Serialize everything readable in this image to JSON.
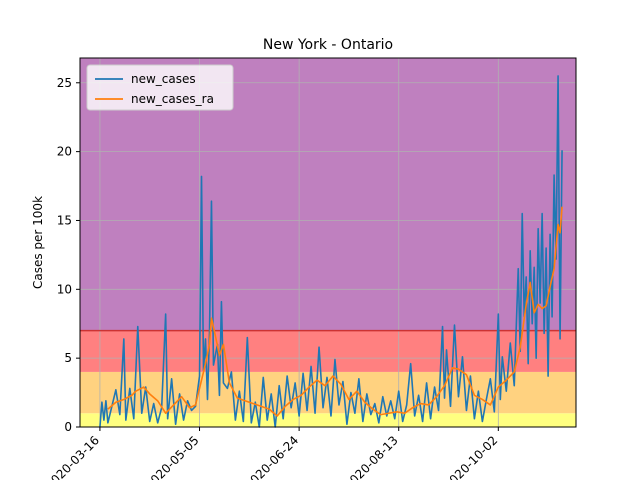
{
  "chart_data": {
    "type": "line",
    "title": "New York - Ontario",
    "xlabel": "",
    "ylabel": "Cases per 100k",
    "x_ticks": [
      "2020-03-16",
      "2020-05-05",
      "2020-06-24",
      "2020-08-13",
      "2020-10-02"
    ],
    "x_range": [
      "2020-03-06",
      "2020-11-10"
    ],
    "ylim": [
      0,
      26.8
    ],
    "y_ticks": [
      0,
      5,
      10,
      15,
      20,
      25
    ],
    "grid": true,
    "legend_position": "top-left",
    "bands": [
      {
        "from": 0,
        "to": 1,
        "color": "#ffff80"
      },
      {
        "from": 1,
        "to": 4,
        "color": "#ffd280"
      },
      {
        "from": 4,
        "to": 7,
        "color": "#ff8080"
      },
      {
        "from": 7,
        "to": 26.8,
        "color": "#bf80bf"
      }
    ],
    "threshold_line": {
      "y": 7,
      "color": "#cc3333"
    },
    "series": [
      {
        "name": "new_cases",
        "color": "#1f77b4",
        "points": [
          [
            "2020-03-16",
            0.0
          ],
          [
            "2020-03-17",
            1.8
          ],
          [
            "2020-03-18",
            0.5
          ],
          [
            "2020-03-19",
            1.9
          ],
          [
            "2020-03-20",
            0.3
          ],
          [
            "2020-03-22",
            1.5
          ],
          [
            "2020-03-24",
            2.7
          ],
          [
            "2020-03-26",
            0.9
          ],
          [
            "2020-03-28",
            6.4
          ],
          [
            "2020-03-29",
            0.5
          ],
          [
            "2020-03-31",
            2.8
          ],
          [
            "2020-04-02",
            0.6
          ],
          [
            "2020-04-04",
            7.3
          ],
          [
            "2020-04-06",
            1.0
          ],
          [
            "2020-04-08",
            2.9
          ],
          [
            "2020-04-10",
            0.4
          ],
          [
            "2020-04-12",
            1.7
          ],
          [
            "2020-04-14",
            0.3
          ],
          [
            "2020-04-16",
            1.4
          ],
          [
            "2020-04-18",
            8.2
          ],
          [
            "2020-04-19",
            0.6
          ],
          [
            "2020-04-21",
            3.5
          ],
          [
            "2020-04-23",
            0.2
          ],
          [
            "2020-04-25",
            2.4
          ],
          [
            "2020-04-27",
            0.5
          ],
          [
            "2020-04-29",
            1.9
          ],
          [
            "2020-05-01",
            1.2
          ],
          [
            "2020-05-03",
            1.5
          ],
          [
            "2020-05-05",
            3.7
          ],
          [
            "2020-05-06",
            18.2
          ],
          [
            "2020-05-07",
            4.1
          ],
          [
            "2020-05-08",
            6.4
          ],
          [
            "2020-05-09",
            2.0
          ],
          [
            "2020-05-10",
            6.8
          ],
          [
            "2020-05-11",
            16.4
          ],
          [
            "2020-05-12",
            4.5
          ],
          [
            "2020-05-14",
            6.0
          ],
          [
            "2020-05-15",
            2.3
          ],
          [
            "2020-05-16",
            9.1
          ],
          [
            "2020-05-17",
            3.2
          ],
          [
            "2020-05-19",
            2.8
          ],
          [
            "2020-05-21",
            4.0
          ],
          [
            "2020-05-23",
            0.5
          ],
          [
            "2020-05-25",
            2.6
          ],
          [
            "2020-05-27",
            0.4
          ],
          [
            "2020-05-29",
            6.5
          ],
          [
            "2020-05-31",
            0.3
          ],
          [
            "2020-06-02",
            1.8
          ],
          [
            "2020-06-04",
            0.0
          ],
          [
            "2020-06-06",
            3.6
          ],
          [
            "2020-06-08",
            0.5
          ],
          [
            "2020-06-10",
            2.4
          ],
          [
            "2020-06-12",
            0.0
          ],
          [
            "2020-06-14",
            3.0
          ],
          [
            "2020-06-16",
            0.6
          ],
          [
            "2020-06-18",
            3.7
          ],
          [
            "2020-06-20",
            1.4
          ],
          [
            "2020-06-22",
            3.2
          ],
          [
            "2020-06-24",
            0.8
          ],
          [
            "2020-06-26",
            3.9
          ],
          [
            "2020-06-28",
            1.2
          ],
          [
            "2020-06-30",
            4.4
          ],
          [
            "2020-07-02",
            1.0
          ],
          [
            "2020-07-04",
            5.8
          ],
          [
            "2020-07-06",
            1.4
          ],
          [
            "2020-07-08",
            3.6
          ],
          [
            "2020-07-10",
            0.8
          ],
          [
            "2020-07-12",
            4.9
          ],
          [
            "2020-07-14",
            1.6
          ],
          [
            "2020-07-16",
            3.3
          ],
          [
            "2020-07-18",
            0.2
          ],
          [
            "2020-07-20",
            2.5
          ],
          [
            "2020-07-22",
            1.0
          ],
          [
            "2020-07-24",
            3.5
          ],
          [
            "2020-07-26",
            0.4
          ],
          [
            "2020-07-28",
            2.4
          ],
          [
            "2020-07-30",
            0.9
          ],
          [
            "2020-08-01",
            1.7
          ],
          [
            "2020-08-03",
            0.3
          ],
          [
            "2020-08-05",
            2.2
          ],
          [
            "2020-08-07",
            0.8
          ],
          [
            "2020-08-09",
            1.9
          ],
          [
            "2020-08-11",
            0.6
          ],
          [
            "2020-08-13",
            2.6
          ],
          [
            "2020-08-15",
            0.4
          ],
          [
            "2020-08-17",
            1.6
          ],
          [
            "2020-08-19",
            4.6
          ],
          [
            "2020-08-21",
            0.8
          ],
          [
            "2020-08-23",
            2.3
          ],
          [
            "2020-08-25",
            0.4
          ],
          [
            "2020-08-27",
            3.2
          ],
          [
            "2020-08-29",
            0.6
          ],
          [
            "2020-08-31",
            2.9
          ],
          [
            "2020-09-02",
            1.2
          ],
          [
            "2020-09-04",
            7.3
          ],
          [
            "2020-09-05",
            2.1
          ],
          [
            "2020-09-06",
            5.6
          ],
          [
            "2020-09-08",
            1.5
          ],
          [
            "2020-09-10",
            7.4
          ],
          [
            "2020-09-12",
            2.2
          ],
          [
            "2020-09-14",
            5.1
          ],
          [
            "2020-09-16",
            1.2
          ],
          [
            "2020-09-18",
            3.7
          ],
          [
            "2020-09-20",
            0.6
          ],
          [
            "2020-09-22",
            2.6
          ],
          [
            "2020-09-24",
            0.4
          ],
          [
            "2020-09-26",
            2.0
          ],
          [
            "2020-09-28",
            3.5
          ],
          [
            "2020-09-30",
            1.1
          ],
          [
            "2020-10-02",
            8.2
          ],
          [
            "2020-10-03",
            2.0
          ],
          [
            "2020-10-04",
            5.1
          ],
          [
            "2020-10-06",
            2.6
          ],
          [
            "2020-10-08",
            6.1
          ],
          [
            "2020-10-10",
            3.0
          ],
          [
            "2020-10-12",
            11.5
          ],
          [
            "2020-10-13",
            5.5
          ],
          [
            "2020-10-14",
            15.5
          ],
          [
            "2020-10-15",
            8.0
          ],
          [
            "2020-10-16",
            10.9
          ],
          [
            "2020-10-17",
            4.6
          ],
          [
            "2020-10-18",
            12.8
          ],
          [
            "2020-10-19",
            7.5
          ],
          [
            "2020-10-20",
            11.6
          ],
          [
            "2020-10-21",
            5.0
          ],
          [
            "2020-10-22",
            14.4
          ],
          [
            "2020-10-23",
            9.0
          ],
          [
            "2020-10-24",
            15.5
          ],
          [
            "2020-10-25",
            6.8
          ],
          [
            "2020-10-26",
            13.0
          ],
          [
            "2020-10-27",
            3.7
          ],
          [
            "2020-10-28",
            14.0
          ],
          [
            "2020-10-29",
            8.0
          ],
          [
            "2020-10-30",
            18.3
          ],
          [
            "2020-10-31",
            12.2
          ],
          [
            "2020-11-01",
            25.5
          ],
          [
            "2020-11-02",
            6.4
          ],
          [
            "2020-11-03",
            20.1
          ]
        ]
      },
      {
        "name": "new_cases_ra",
        "color": "#ff7f0e",
        "points": [
          [
            "2020-03-20",
            1.3
          ],
          [
            "2020-03-24",
            1.8
          ],
          [
            "2020-03-28",
            2.0
          ],
          [
            "2020-04-01",
            2.3
          ],
          [
            "2020-04-03",
            2.6
          ],
          [
            "2020-04-07",
            2.9
          ],
          [
            "2020-04-10",
            2.4
          ],
          [
            "2020-04-14",
            1.9
          ],
          [
            "2020-04-18",
            1.0
          ],
          [
            "2020-04-22",
            1.6
          ],
          [
            "2020-04-26",
            2.2
          ],
          [
            "2020-04-30",
            1.4
          ],
          [
            "2020-05-03",
            1.6
          ],
          [
            "2020-05-06",
            3.4
          ],
          [
            "2020-05-08",
            4.6
          ],
          [
            "2020-05-10",
            6.0
          ],
          [
            "2020-05-11",
            7.9
          ],
          [
            "2020-05-13",
            6.6
          ],
          [
            "2020-05-15",
            5.2
          ],
          [
            "2020-05-17",
            6.0
          ],
          [
            "2020-05-20",
            3.2
          ],
          [
            "2020-05-24",
            2.1
          ],
          [
            "2020-05-28",
            1.9
          ],
          [
            "2020-06-01",
            1.7
          ],
          [
            "2020-06-05",
            1.5
          ],
          [
            "2020-06-09",
            1.3
          ],
          [
            "2020-06-13",
            0.8
          ],
          [
            "2020-06-17",
            1.5
          ],
          [
            "2020-06-21",
            2.0
          ],
          [
            "2020-06-25",
            2.3
          ],
          [
            "2020-06-29",
            2.9
          ],
          [
            "2020-07-03",
            3.4
          ],
          [
            "2020-07-07",
            3.0
          ],
          [
            "2020-07-11",
            3.7
          ],
          [
            "2020-07-15",
            3.1
          ],
          [
            "2020-07-19",
            2.0
          ],
          [
            "2020-07-23",
            2.6
          ],
          [
            "2020-07-27",
            1.8
          ],
          [
            "2020-07-31",
            1.3
          ],
          [
            "2020-08-04",
            0.9
          ],
          [
            "2020-08-08",
            1.0
          ],
          [
            "2020-08-12",
            1.1
          ],
          [
            "2020-08-16",
            1.0
          ],
          [
            "2020-08-20",
            1.4
          ],
          [
            "2020-08-24",
            1.7
          ],
          [
            "2020-08-28",
            1.6
          ],
          [
            "2020-09-01",
            2.2
          ],
          [
            "2020-09-05",
            3.0
          ],
          [
            "2020-09-09",
            4.3
          ],
          [
            "2020-09-12",
            4.2
          ],
          [
            "2020-09-16",
            3.8
          ],
          [
            "2020-09-20",
            2.3
          ],
          [
            "2020-09-24",
            2.0
          ],
          [
            "2020-09-28",
            1.6
          ],
          [
            "2020-10-02",
            2.9
          ],
          [
            "2020-10-06",
            3.4
          ],
          [
            "2020-10-10",
            4.0
          ],
          [
            "2020-10-13",
            5.8
          ],
          [
            "2020-10-16",
            8.9
          ],
          [
            "2020-10-18",
            10.5
          ],
          [
            "2020-10-20",
            8.3
          ],
          [
            "2020-10-22",
            8.9
          ],
          [
            "2020-10-24",
            8.6
          ],
          [
            "2020-10-26",
            8.8
          ],
          [
            "2020-10-28",
            10.2
          ],
          [
            "2020-10-30",
            11.5
          ],
          [
            "2020-11-01",
            14.7
          ],
          [
            "2020-11-02",
            14.1
          ],
          [
            "2020-11-03",
            16.0
          ]
        ]
      }
    ]
  }
}
